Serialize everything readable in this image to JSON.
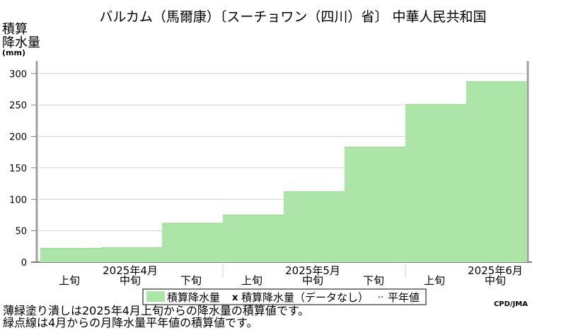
{
  "chart_data": {
    "type": "area",
    "title": "バルカム（馬爾康）〔スーチョワン（四川）省〕 中華人民共和国",
    "ylabel_lines": [
      "積算",
      "降水量",
      "(mm)"
    ],
    "ylim": [
      0,
      320
    ],
    "yticks": [
      0,
      50,
      100,
      150,
      200,
      250,
      300
    ],
    "periods": [
      "上旬",
      "中旬",
      "下旬",
      "上旬",
      "中旬",
      "下旬",
      "上旬",
      "中旬"
    ],
    "months": [
      "2025年4月",
      "2025年5月",
      "2025年6月"
    ],
    "series": [
      {
        "name": "積算降水量",
        "values": [
          22,
          23,
          62,
          75,
          112,
          183,
          251,
          287
        ]
      }
    ],
    "legend": {
      "items": [
        "積算降水量",
        "積算降水量（データなし）",
        "平年値"
      ],
      "marker_missing": "x",
      "marker_normal": "··"
    },
    "credit": "CPD/JMA",
    "colors": {
      "fill": "#ade5a8",
      "fill_edge": "#96d491",
      "grid": "#d0d0d0",
      "axis": "#808080"
    }
  },
  "notes": [
    "薄緑塗り潰しは2025年4月上旬からの降水量の積算値です。",
    "緑点線は4月からの月降水量平年値の積算値です。"
  ]
}
